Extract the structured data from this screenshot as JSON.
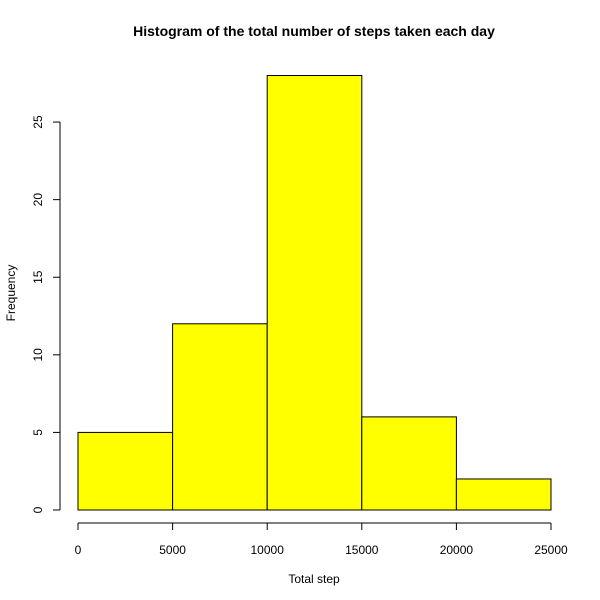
{
  "chart_data": {
    "type": "bar",
    "title": "Histogram of the total number of steps taken each day",
    "xlabel": "Total step",
    "ylabel": "Frequency",
    "bins": [
      {
        "from": 0,
        "to": 5000,
        "count": 5
      },
      {
        "from": 5000,
        "to": 10000,
        "count": 12
      },
      {
        "from": 10000,
        "to": 15000,
        "count": 28
      },
      {
        "from": 15000,
        "to": 20000,
        "count": 6
      },
      {
        "from": 20000,
        "to": 25000,
        "count": 2
      }
    ],
    "xlim": [
      0,
      25000
    ],
    "ylim": [
      0,
      28
    ],
    "x_ticks": [
      0,
      5000,
      10000,
      15000,
      20000,
      25000
    ],
    "x_tick_labels": [
      "0",
      "5000",
      "10000",
      "15000",
      "20000",
      "25000"
    ],
    "y_ticks": [
      0,
      5,
      10,
      15,
      20,
      25
    ],
    "y_tick_labels": [
      "0",
      "5",
      "10",
      "15",
      "20",
      "25"
    ],
    "bar_color": "#ffff00",
    "border_color": "#000000",
    "grid": false,
    "legend": "none"
  }
}
